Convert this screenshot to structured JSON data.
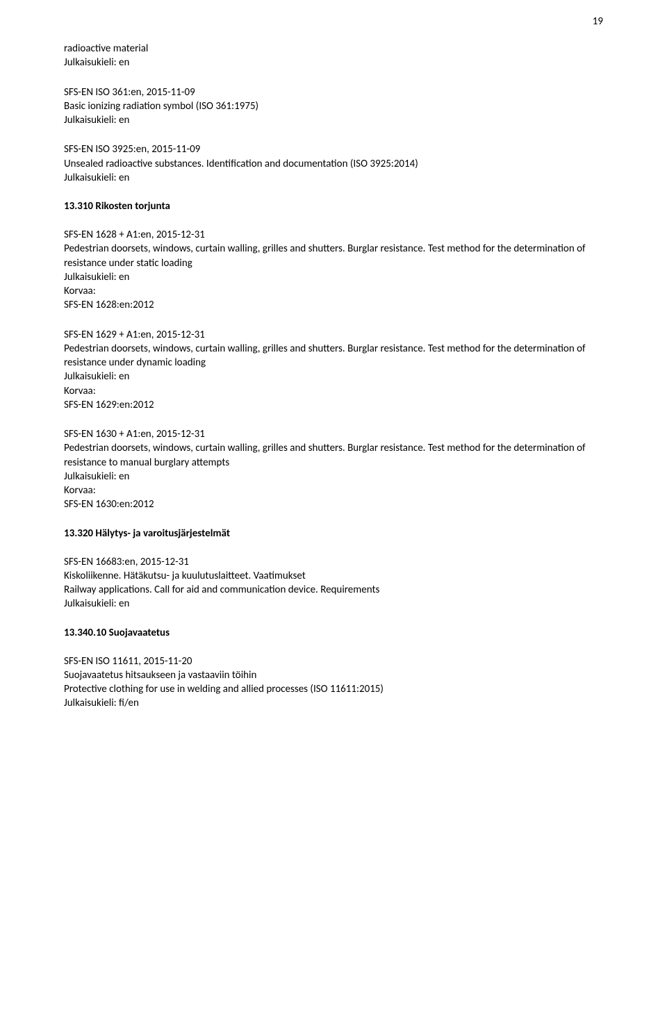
{
  "page_number": "19",
  "top_fragment": {
    "line1": "radioactive material",
    "lang": "Julkaisukieli: en"
  },
  "entries_group_a": [
    {
      "code": "SFS-EN ISO 361:en, 2015-11-09",
      "desc": "Basic ionizing radiation symbol (ISO 361:1975)",
      "lang": "Julkaisukieli: en"
    },
    {
      "code": "SFS-EN ISO 3925:en, 2015-11-09",
      "desc": "Unsealed radioactive substances. Identification and documentation (ISO 3925:2014)",
      "lang": "Julkaisukieli: en"
    }
  ],
  "heading_b": "13.310 Rikosten torjunta",
  "entries_group_b": [
    {
      "code": "SFS-EN 1628 + A1:en, 2015-12-31",
      "desc": "Pedestrian doorsets, windows, curtain walling, grilles and shutters. Burglar resistance. Test method for the determination of resistance under static loading",
      "lang": "Julkaisukieli: en",
      "replaces_label": "Korvaa:",
      "replaces": "SFS-EN 1628:en:2012"
    },
    {
      "code": "SFS-EN 1629 + A1:en, 2015-12-31",
      "desc": "Pedestrian doorsets, windows, curtain walling, grilles and shutters. Burglar resistance. Test method for the determination of resistance under dynamic loading",
      "lang": "Julkaisukieli: en",
      "replaces_label": "Korvaa:",
      "replaces": "SFS-EN 1629:en:2012"
    },
    {
      "code": "SFS-EN 1630 + A1:en, 2015-12-31",
      "desc": "Pedestrian doorsets, windows, curtain walling, grilles and shutters. Burglar resistance. Test method for the determination of resistance to manual burglary attempts",
      "lang": "Julkaisukieli: en",
      "replaces_label": "Korvaa:",
      "replaces": "SFS-EN 1630:en:2012"
    }
  ],
  "heading_c": "13.320 Hälytys- ja varoitusjärjestelmät",
  "entries_group_c": [
    {
      "code": "SFS-EN 16683:en, 2015-12-31",
      "title_fi": "Kiskoliikenne. Hätäkutsu- ja kuulutuslaitteet. Vaatimukset",
      "title_en": "Railway applications. Call for aid and communication device. Requirements",
      "lang": "Julkaisukieli: en"
    }
  ],
  "heading_d": "13.340.10 Suojavaatetus",
  "entries_group_d": [
    {
      "code": "SFS-EN ISO 11611, 2015-11-20",
      "title_fi": "Suojavaatetus hitsaukseen ja vastaaviin töihin",
      "title_en": "Protective clothing for use in welding and allied processes (ISO 11611:2015)",
      "lang": "Julkaisukieli: fi/en"
    }
  ]
}
